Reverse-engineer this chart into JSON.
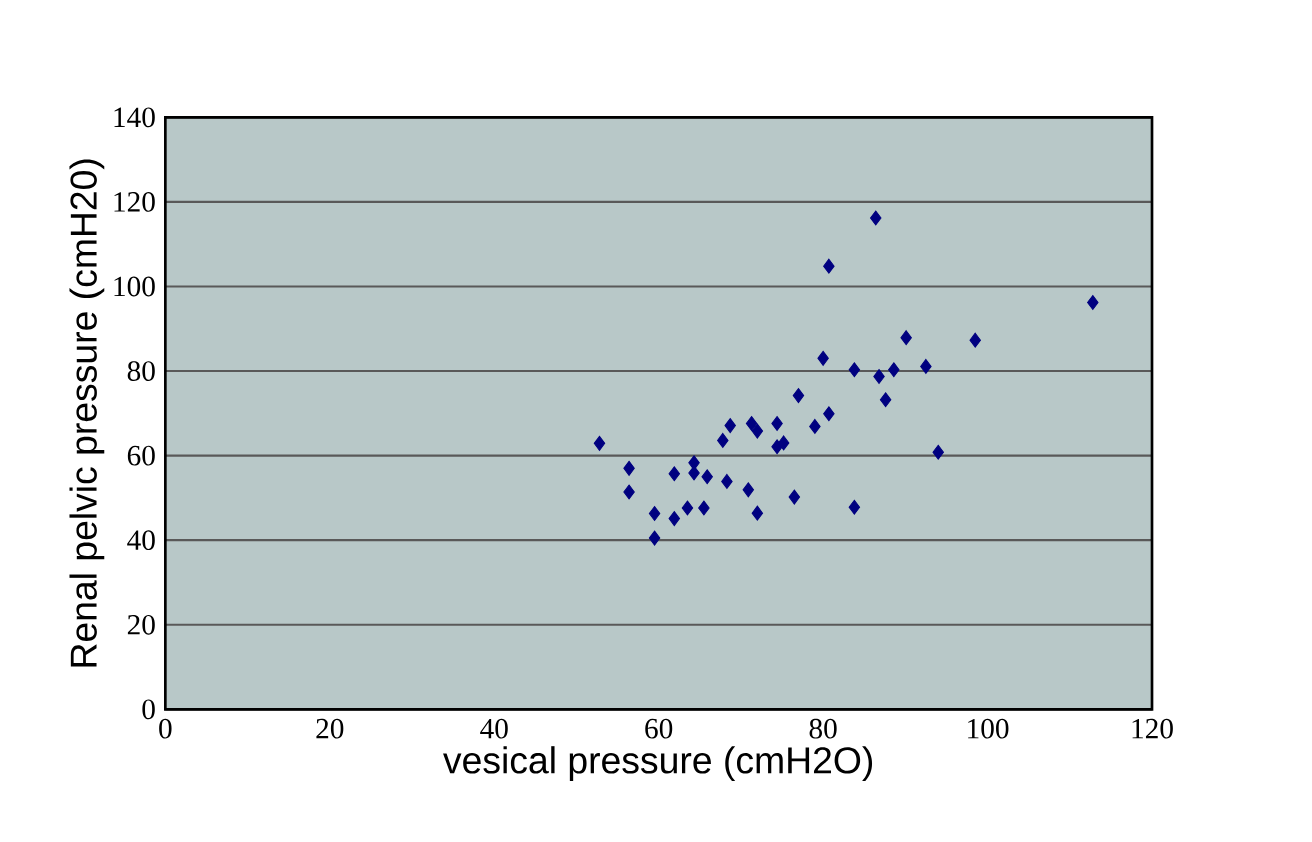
{
  "chart_data": {
    "type": "scatter",
    "xlabel": "vesical pressure  (cmH2O)",
    "ylabel": "Renal pelvic pressure (cmH20)",
    "marker": "diamond",
    "grid": "y",
    "xlim": [
      0,
      120
    ],
    "ylim": [
      0,
      140
    ],
    "xticks": [
      0,
      20,
      40,
      60,
      80,
      100,
      120
    ],
    "yticks": [
      0,
      20,
      40,
      60,
      80,
      100,
      120,
      140
    ],
    "series": [
      {
        "color": "#000080",
        "x": [
          52.8,
          56.4,
          56.4,
          59.5,
          59.5,
          61.9,
          61.9,
          63.5,
          64.3,
          64.3,
          65.9,
          65.5,
          67.8,
          68.7,
          68.3,
          70.9,
          71.3,
          72.0,
          72.0,
          74.4,
          74.4,
          75.2,
          76.5,
          77.0,
          79.0,
          80.0,
          80.7,
          80.7,
          83.8,
          83.8,
          86.4,
          86.8,
          87.6,
          88.6,
          90.1,
          92.5,
          94.0,
          98.5,
          112.8
        ],
        "values": [
          62.9,
          57.0,
          51.4,
          46.3,
          40.5,
          55.7,
          45.1,
          47.6,
          58.3,
          55.9,
          55.0,
          47.6,
          63.6,
          67.1,
          53.9,
          51.9,
          67.6,
          65.8,
          46.4,
          67.6,
          62.1,
          63.0,
          50.2,
          74.2,
          66.9,
          83.0,
          69.9,
          104.8,
          80.3,
          47.8,
          116.2,
          78.7,
          73.2,
          80.3,
          87.9,
          81.1,
          60.8,
          87.3,
          96.2
        ]
      }
    ]
  }
}
